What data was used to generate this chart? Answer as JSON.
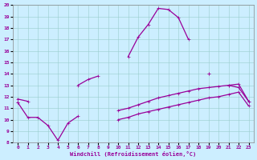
{
  "xlabel": "Windchill (Refroidissement éolien,°C)",
  "background_color": "#cceeff",
  "line_color": "#990099",
  "xlim": [
    -0.5,
    23.5
  ],
  "ylim": [
    8,
    20
  ],
  "xticks": [
    0,
    1,
    2,
    3,
    4,
    5,
    6,
    7,
    8,
    9,
    10,
    11,
    12,
    13,
    14,
    15,
    16,
    17,
    18,
    19,
    20,
    21,
    22,
    23
  ],
  "yticks": [
    8,
    9,
    10,
    11,
    12,
    13,
    14,
    15,
    16,
    17,
    18,
    19,
    20
  ],
  "series": [
    {
      "x": [
        0,
        1,
        2,
        3,
        4,
        5,
        6,
        7,
        8,
        9,
        10,
        11,
        12,
        13,
        14,
        15,
        16,
        17,
        18,
        19,
        20,
        21,
        22,
        23
      ],
      "y": [
        null,
        null,
        null,
        null,
        null,
        null,
        null,
        null,
        null,
        null,
        null,
        15.5,
        17.2,
        18.3,
        19.7,
        19.6,
        18.9,
        17.0,
        null,
        14.0,
        null,
        null,
        null,
        null
      ]
    },
    {
      "x": [
        0,
        1,
        2,
        3,
        4,
        5,
        6,
        7,
        8,
        9,
        10,
        11,
        12,
        13,
        14,
        15,
        16,
        17,
        18,
        19,
        20,
        21,
        22,
        23
      ],
      "y": [
        11.8,
        11.6,
        null,
        null,
        null,
        null,
        13.0,
        13.5,
        13.8,
        null,
        null,
        null,
        null,
        null,
        null,
        null,
        null,
        null,
        null,
        14.0,
        null,
        13.0,
        13.1,
        11.6
      ]
    },
    {
      "x": [
        0,
        1,
        2,
        3,
        4,
        5,
        6,
        7,
        8,
        9,
        10,
        11,
        12,
        13,
        14,
        15,
        16,
        17,
        18,
        19,
        20,
        21,
        22,
        23
      ],
      "y": [
        11.5,
        null,
        null,
        null,
        null,
        null,
        null,
        null,
        null,
        null,
        10.8,
        11.0,
        11.3,
        11.6,
        11.9,
        12.1,
        12.3,
        12.5,
        12.7,
        12.8,
        12.9,
        13.0,
        12.8,
        11.6
      ]
    },
    {
      "x": [
        0,
        1,
        2,
        3,
        4,
        5,
        6,
        7,
        8,
        9,
        10,
        11,
        12,
        13,
        14,
        15,
        16,
        17,
        18,
        19,
        20,
        21,
        22,
        23
      ],
      "y": [
        11.5,
        10.2,
        10.2,
        9.5,
        8.2,
        9.7,
        10.3,
        null,
        null,
        null,
        10.0,
        10.2,
        10.5,
        10.7,
        10.9,
        11.1,
        11.3,
        11.5,
        11.7,
        11.9,
        12.0,
        12.2,
        12.4,
        11.2
      ]
    }
  ]
}
